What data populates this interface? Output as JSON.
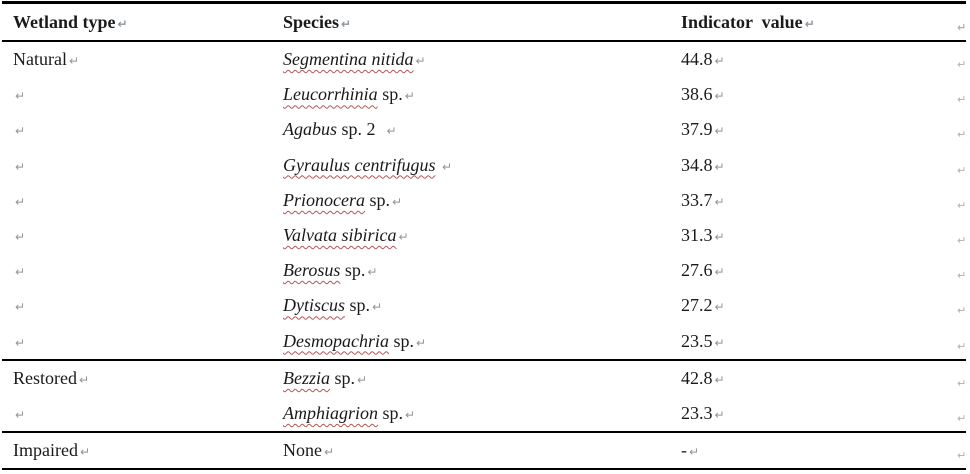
{
  "header": {
    "col1": "Wetland type",
    "col2": "Species",
    "col3": "Indicator  value"
  },
  "marks": {
    "end_of_cell": "↵",
    "end_of_row": "↵"
  },
  "colors": {
    "text": "#1a1a1a",
    "border": "#000000",
    "spellcheck_squiggle": "#b45555",
    "formatting_mark": "#8d959d",
    "background": "#ffffff"
  },
  "table": {
    "sections": [
      {
        "name": "Natural",
        "rows": [
          {
            "wetland": "Natural",
            "species_italic": "Segmentina nitida",
            "species_plain": "",
            "squiggle": true,
            "value": "44.8"
          },
          {
            "wetland": "",
            "species_italic": "Leucorrhinia",
            "species_plain": " sp.",
            "squiggle": true,
            "value": "38.6"
          },
          {
            "wetland": "",
            "species_italic": "Agabus",
            "species_plain": " sp. 2  ",
            "squiggle": false,
            "value": "37.9"
          },
          {
            "wetland": "",
            "species_italic": "Gyraulus centrifugus",
            "species_plain": " ",
            "squiggle": true,
            "value": "34.8"
          },
          {
            "wetland": "",
            "species_italic": "Prionocera",
            "species_plain": " sp.",
            "squiggle": true,
            "value": "33.7"
          },
          {
            "wetland": "",
            "species_italic": "Valvata sibirica",
            "species_plain": "",
            "squiggle": true,
            "value": "31.3"
          },
          {
            "wetland": "",
            "species_italic": "Berosus",
            "species_plain": " sp.",
            "squiggle": true,
            "value": "27.6"
          },
          {
            "wetland": "",
            "species_italic": "Dytiscus",
            "species_plain": " sp.",
            "squiggle": true,
            "value": "27.2"
          },
          {
            "wetland": "",
            "species_italic": "Desmopachria",
            "species_plain": " sp.",
            "squiggle": true,
            "value": "23.5"
          }
        ]
      },
      {
        "name": "Restored",
        "rows": [
          {
            "wetland": "Restored",
            "species_italic": "Bezzia",
            "species_plain": " sp.",
            "squiggle": true,
            "value": "42.8"
          },
          {
            "wetland": "",
            "species_italic": "Amphiagrion",
            "species_plain": " sp.",
            "squiggle": true,
            "value": "23.3"
          }
        ]
      },
      {
        "name": "Impaired",
        "rows": [
          {
            "wetland": "Impaired",
            "species_italic": "",
            "species_plain": "None",
            "squiggle": false,
            "value": "-"
          }
        ]
      }
    ]
  }
}
